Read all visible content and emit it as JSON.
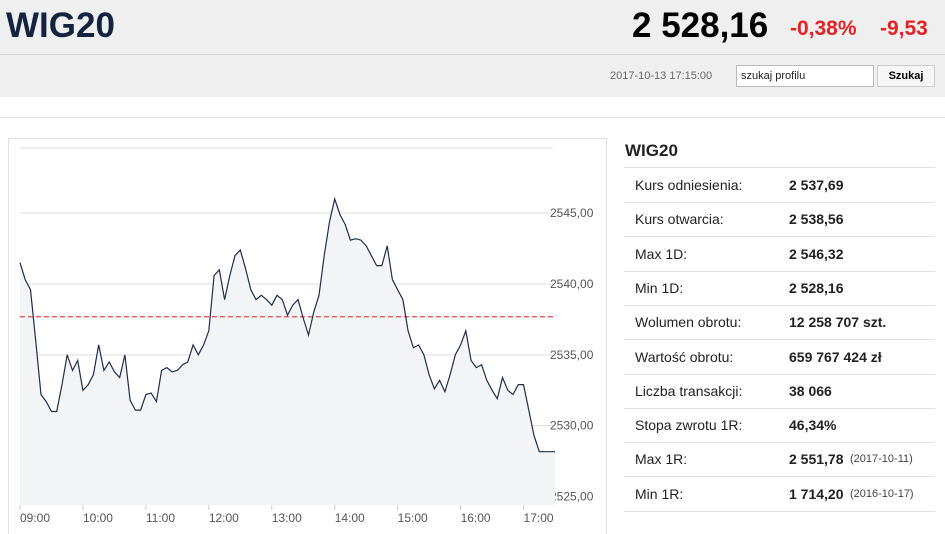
{
  "header": {
    "title": "WIG20",
    "price": "2 528,16",
    "change_pct": "-0,38%",
    "change": "-9,53",
    "timestamp": "2017-10-13 17:15:00",
    "search_placeholder": "szukaj profilu",
    "search_button": "Szukaj"
  },
  "table": {
    "title": "WIG20",
    "rows": [
      [
        "Kurs odniesienia:",
        "2 537,69",
        null
      ],
      [
        "Kurs otwarcia:",
        "2 538,56",
        null
      ],
      [
        "Max 1D:",
        "2 546,32",
        null
      ],
      [
        "Min 1D:",
        "2 528,16",
        null
      ],
      [
        "Wolumen obrotu:",
        "12 258 707 szt.",
        null
      ],
      [
        "Wartość obrotu:",
        "659 767 424 zł",
        null
      ],
      [
        "Liczba transakcji:",
        "38 066",
        null
      ],
      [
        "Stopa zwrotu 1R:",
        "46,34%",
        null
      ],
      [
        "Max 1R:",
        "2 551,78",
        "(2017-10-11)"
      ],
      [
        "Min 1R:",
        "1 714,20",
        "(2016-10-17)"
      ]
    ]
  },
  "chart_data": {
    "type": "line",
    "reference_line": 2537.69,
    "reference_color": "#e8474b",
    "x": [
      "09:00",
      "09:05",
      "09:10",
      "09:15",
      "09:20",
      "09:25",
      "09:30",
      "09:35",
      "09:40",
      "09:45",
      "09:50",
      "09:55",
      "10:00",
      "10:05",
      "10:10",
      "10:15",
      "10:20",
      "10:25",
      "10:30",
      "10:35",
      "10:40",
      "10:45",
      "10:50",
      "10:55",
      "11:00",
      "11:05",
      "11:10",
      "11:15",
      "11:20",
      "11:25",
      "11:30",
      "11:35",
      "11:40",
      "11:45",
      "11:50",
      "11:55",
      "12:00",
      "12:05",
      "12:10",
      "12:15",
      "12:20",
      "12:25",
      "12:30",
      "12:35",
      "12:40",
      "12:45",
      "12:50",
      "12:55",
      "13:00",
      "13:05",
      "13:10",
      "13:15",
      "13:20",
      "13:25",
      "13:30",
      "13:35",
      "13:40",
      "13:45",
      "13:50",
      "13:55",
      "14:00",
      "14:05",
      "14:10",
      "14:15",
      "14:20",
      "14:25",
      "14:30",
      "14:35",
      "14:40",
      "14:45",
      "14:50",
      "14:55",
      "15:00",
      "15:05",
      "15:10",
      "15:15",
      "15:20",
      "15:25",
      "15:30",
      "15:35",
      "15:40",
      "15:45",
      "15:50",
      "15:55",
      "16:00",
      "16:05",
      "16:10",
      "16:15",
      "16:20",
      "16:25",
      "16:30",
      "16:35",
      "16:40",
      "16:45",
      "16:50",
      "16:55",
      "17:00",
      "17:05",
      "17:10",
      "17:15",
      "17:20",
      "17:25",
      "17:30"
    ],
    "series": [
      {
        "name": "WIG20",
        "color": "#1f2d4d",
        "values": [
          2541.5,
          2540.3,
          2539.6,
          2536.0,
          2532.2,
          2531.7,
          2531.0,
          2531.0,
          2532.9,
          2535.0,
          2533.9,
          2534.6,
          2532.5,
          2532.9,
          2533.6,
          2535.7,
          2533.9,
          2534.5,
          2533.8,
          2533.4,
          2535.0,
          2531.8,
          2531.1,
          2531.1,
          2532.2,
          2532.3,
          2531.7,
          2533.9,
          2534.1,
          2533.8,
          2533.9,
          2534.3,
          2534.5,
          2535.7,
          2535.0,
          2535.7,
          2536.7,
          2540.6,
          2541.0,
          2538.9,
          2540.6,
          2542.0,
          2542.4,
          2541.1,
          2539.6,
          2538.9,
          2539.2,
          2538.9,
          2538.5,
          2539.2,
          2538.9,
          2537.8,
          2538.5,
          2538.9,
          2537.6,
          2536.4,
          2538.0,
          2539.2,
          2542.0,
          2544.4,
          2546.0,
          2544.9,
          2544.2,
          2543.1,
          2543.2,
          2543.1,
          2542.7,
          2542.0,
          2541.3,
          2541.3,
          2542.7,
          2540.3,
          2539.6,
          2538.9,
          2536.7,
          2535.5,
          2535.7,
          2535.0,
          2533.6,
          2532.6,
          2533.2,
          2532.4,
          2533.6,
          2535.0,
          2535.7,
          2536.7,
          2534.6,
          2534.1,
          2534.3,
          2533.2,
          2532.5,
          2531.9,
          2533.4,
          2532.5,
          2532.2,
          2532.9,
          2532.9,
          2531.1,
          2529.3,
          2528.16,
          2528.16,
          2528.16,
          2528.16
        ]
      }
    ],
    "xlim": [
      "09:00",
      "17:30"
    ],
    "xticks": [
      "09:00",
      "10:00",
      "11:00",
      "12:00",
      "13:00",
      "14:00",
      "15:00",
      "16:00",
      "17:00"
    ],
    "ylim": [
      2524.4,
      2549.6
    ],
    "yticks": [
      {
        "value": 2525,
        "label": "2525,00"
      },
      {
        "value": 2530,
        "label": "2530,00"
      },
      {
        "value": 2535,
        "label": "2535,00"
      },
      {
        "value": 2540,
        "label": "2540,00"
      },
      {
        "value": 2545,
        "label": "2545,00"
      }
    ],
    "grid": true
  }
}
